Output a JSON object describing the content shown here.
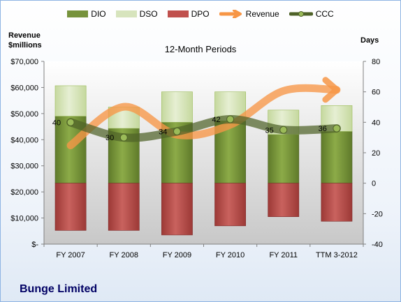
{
  "chart_data": {
    "type": "bar",
    "title": "12-Month Periods",
    "company": "Bunge Limited",
    "ylabel_left": [
      "Revenue",
      "$millions"
    ],
    "ylabel_right": "Days",
    "categories": [
      "FY 2007",
      "FY 2008",
      "FY 2009",
      "FY 2010",
      "FY 2011",
      "TTM 3-2012"
    ],
    "left_axis": {
      "ylim": [
        0,
        70000
      ],
      "ticks": [
        0,
        10000,
        20000,
        30000,
        40000,
        50000,
        60000,
        70000
      ],
      "tick_labels": [
        "$-",
        "$10,000",
        "$20,000",
        "$30,000",
        "$40,000",
        "$50,000",
        "$60,000",
        "$70,000"
      ]
    },
    "right_axis": {
      "ylim": [
        -40,
        80
      ],
      "ticks": [
        -40,
        -20,
        0,
        20,
        40,
        60,
        80
      ],
      "tick_labels": [
        "-40",
        "-20",
        "0",
        "20",
        "40",
        "60",
        "80"
      ]
    },
    "series": [
      {
        "name": "DIO",
        "kind": "bar-stack",
        "axis": "right",
        "color": "#77933c",
        "values": [
          44,
          36,
          40,
          41,
          32,
          34
        ]
      },
      {
        "name": "DSO",
        "kind": "bar-stack",
        "axis": "right",
        "color": "#d7e4bd",
        "values": [
          20,
          14,
          20,
          19,
          16,
          17
        ]
      },
      {
        "name": "DPO",
        "kind": "bar-neg",
        "axis": "right",
        "color": "#c0504d",
        "values": [
          31,
          31,
          34,
          28,
          22,
          25
        ]
      },
      {
        "name": "Revenue",
        "kind": "line",
        "axis": "left",
        "color": "#f79646",
        "values": [
          37800,
          52600,
          41900,
          45700,
          58700,
          59100
        ]
      },
      {
        "name": "CCC",
        "kind": "line",
        "axis": "right",
        "color": "#4f6228",
        "values": [
          40,
          30,
          34,
          42,
          35,
          36
        ]
      }
    ],
    "ccc_labels": [
      "40",
      "30",
      "34",
      "42",
      "35",
      "36"
    ],
    "legend_position": "top",
    "grid": false
  }
}
